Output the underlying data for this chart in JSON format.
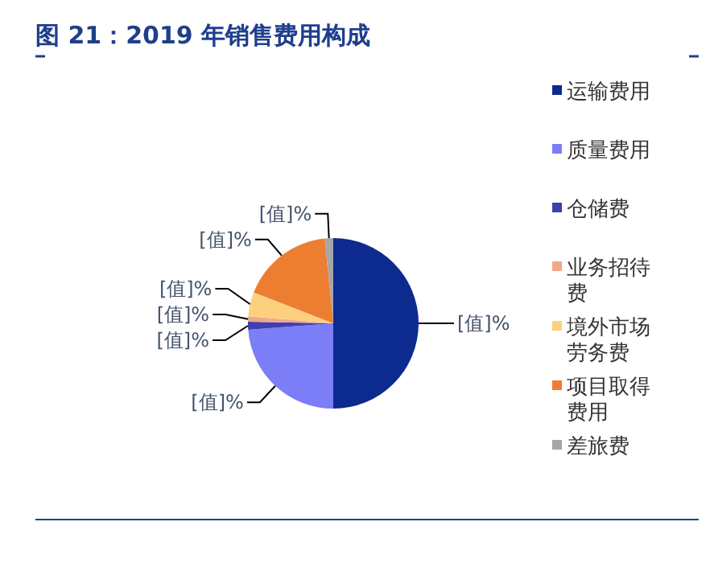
{
  "chart_data": {
    "type": "pie",
    "title": "图 21：2019 年销售费用构成",
    "categories": [
      "运输费用",
      "质量费用",
      "仓储费",
      "业务招待费",
      "境外市场劳务费",
      "项目取得费用",
      "差旅费"
    ],
    "values": [
      50,
      23.8,
      1.5,
      1,
      4.6,
      17.5,
      1.6
    ],
    "colors": [
      "#0d2a8e",
      "#7b7ef7",
      "#3e3fb0",
      "#f0a88a",
      "#fdd080",
      "#ed7d31",
      "#a6a6a6"
    ],
    "value_labels": [
      "[值]%",
      "[值]%",
      "[值]%",
      "[值]%",
      "[值]%",
      "[值]%",
      "[值]%"
    ],
    "legend": "right"
  }
}
